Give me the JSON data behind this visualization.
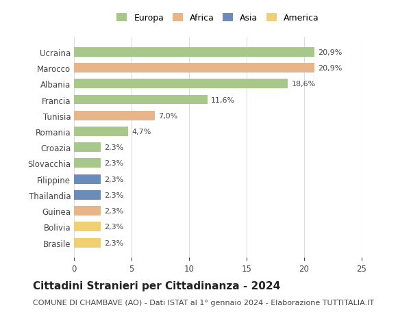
{
  "categories": [
    "Brasile",
    "Bolivia",
    "Guinea",
    "Thailandia",
    "Filippine",
    "Slovacchia",
    "Croazia",
    "Romania",
    "Tunisia",
    "Francia",
    "Albania",
    "Marocco",
    "Ucraina"
  ],
  "values": [
    2.3,
    2.3,
    2.3,
    2.3,
    2.3,
    2.3,
    2.3,
    4.7,
    7.0,
    11.6,
    18.6,
    20.9,
    20.9
  ],
  "continents": [
    "America",
    "America",
    "Africa",
    "Asia",
    "Asia",
    "Europa",
    "Europa",
    "Europa",
    "Africa",
    "Europa",
    "Europa",
    "Africa",
    "Europa"
  ],
  "colors": {
    "Europa": "#a8c78a",
    "Africa": "#e8b48a",
    "Asia": "#6b8cba",
    "America": "#f0d070"
  },
  "labels": [
    "2,3%",
    "2,3%",
    "2,3%",
    "2,3%",
    "2,3%",
    "2,3%",
    "2,3%",
    "4,7%",
    "7,0%",
    "11,6%",
    "18,6%",
    "20,9%",
    "20,9%"
  ],
  "title": "Cittadini Stranieri per Cittadinanza - 2024",
  "subtitle": "COMUNE DI CHAMBAVE (AO) - Dati ISTAT al 1° gennaio 2024 - Elaborazione TUTTITALIA.IT",
  "xlim": [
    0,
    25
  ],
  "xticks": [
    0,
    5,
    10,
    15,
    20,
    25
  ],
  "legend_items": [
    "Europa",
    "Africa",
    "Asia",
    "America"
  ],
  "background_color": "#ffffff",
  "bar_height": 0.6,
  "grid_color": "#dddddd",
  "text_color": "#444444",
  "title_fontsize": 11,
  "subtitle_fontsize": 8,
  "tick_fontsize": 8.5,
  "label_fontsize": 8
}
